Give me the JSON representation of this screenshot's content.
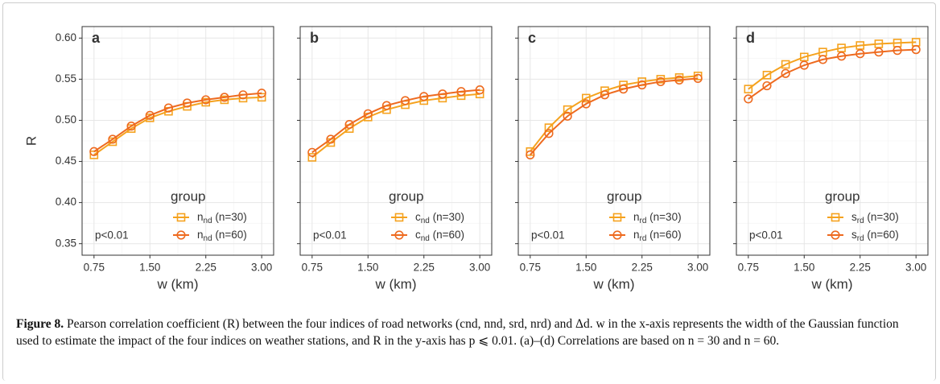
{
  "chart_data": [
    {
      "type": "line",
      "panel_label": "a",
      "ylabel": "R",
      "xlabel": "w (km)",
      "legend_title": "group",
      "annotation": "p<0.01",
      "show_ytick_labels": true,
      "x": [
        0.75,
        1.0,
        1.25,
        1.5,
        1.75,
        2.0,
        2.25,
        2.5,
        2.75,
        3.0
      ],
      "series": [
        {
          "name": "nnd (n=30)",
          "color": "#f5a21e",
          "marker": "square",
          "values": [
            0.458,
            0.474,
            0.49,
            0.503,
            0.511,
            0.517,
            0.522,
            0.525,
            0.527,
            0.528
          ]
        },
        {
          "name": "nnd (n=60)",
          "color": "#ee6a1f",
          "marker": "circle",
          "values": [
            0.462,
            0.477,
            0.493,
            0.506,
            0.515,
            0.521,
            0.525,
            0.528,
            0.531,
            0.533
          ]
        }
      ],
      "xlim": [
        0.59,
        3.16
      ],
      "xticks": [
        0.75,
        {
          "value": 1.5,
          "label": "1.50"
        },
        2.25,
        {
          "value": 3.0,
          "label": "3.00"
        }
      ],
      "ylim": [
        0.336,
        0.614
      ],
      "yticks": [
        0.35,
        {
          "value": 0.4,
          "label": "0.40"
        },
        0.45,
        {
          "value": 0.5,
          "label": "0.50"
        },
        0.55,
        {
          "value": 0.6,
          "label": "0.60"
        }
      ],
      "grid": true
    },
    {
      "type": "line",
      "panel_label": "b",
      "xlabel": "w (km)",
      "legend_title": "group",
      "annotation": "p<0.01",
      "show_ytick_labels": false,
      "x": [
        0.75,
        1.0,
        1.25,
        1.5,
        1.75,
        2.0,
        2.25,
        2.5,
        2.75,
        3.0
      ],
      "series": [
        {
          "name": "cnd (n=30)",
          "color": "#f5a21e",
          "marker": "square",
          "values": [
            0.455,
            0.473,
            0.49,
            0.504,
            0.513,
            0.519,
            0.524,
            0.527,
            0.53,
            0.532
          ]
        },
        {
          "name": "cnd (n=60)",
          "color": "#ee6a1f",
          "marker": "circle",
          "values": [
            0.461,
            0.477,
            0.495,
            0.508,
            0.518,
            0.524,
            0.529,
            0.532,
            0.535,
            0.537
          ]
        }
      ],
      "xlim": [
        0.59,
        3.16
      ],
      "xticks": [
        0.75,
        {
          "value": 1.5,
          "label": "1.50"
        },
        2.25,
        {
          "value": 3.0,
          "label": "3.00"
        }
      ],
      "ylim": [
        0.336,
        0.614
      ],
      "yticks": [
        0.35,
        0.4,
        0.45,
        0.5,
        0.55,
        0.6
      ],
      "grid": true
    },
    {
      "type": "line",
      "panel_label": "c",
      "xlabel": "w (km)",
      "legend_title": "group",
      "annotation": "p<0.01",
      "show_ytick_labels": false,
      "x": [
        0.75,
        1.0,
        1.25,
        1.5,
        1.75,
        2.0,
        2.25,
        2.5,
        2.75,
        3.0
      ],
      "series": [
        {
          "name": "nrd (n=30)",
          "color": "#f5a21e",
          "marker": "square",
          "values": [
            0.462,
            0.491,
            0.513,
            0.527,
            0.536,
            0.543,
            0.547,
            0.55,
            0.552,
            0.554
          ]
        },
        {
          "name": "nrd (n=60)",
          "color": "#ee6a1f",
          "marker": "circle",
          "values": [
            0.458,
            0.484,
            0.505,
            0.52,
            0.531,
            0.538,
            0.543,
            0.547,
            0.549,
            0.551
          ]
        }
      ],
      "xlim": [
        0.59,
        3.16
      ],
      "xticks": [
        0.75,
        {
          "value": 1.5,
          "label": "1.50"
        },
        2.25,
        {
          "value": 3.0,
          "label": "3.00"
        }
      ],
      "ylim": [
        0.336,
        0.614
      ],
      "yticks": [
        0.35,
        0.4,
        0.45,
        0.5,
        0.55,
        0.6
      ],
      "grid": true
    },
    {
      "type": "line",
      "panel_label": "d",
      "xlabel": "w (km)",
      "legend_title": "group",
      "annotation": "p<0.01",
      "show_ytick_labels": false,
      "x": [
        0.75,
        1.0,
        1.25,
        1.5,
        1.75,
        2.0,
        2.25,
        2.5,
        2.75,
        3.0
      ],
      "series": [
        {
          "name": "srd (n=30)",
          "color": "#f5a21e",
          "marker": "square",
          "values": [
            0.538,
            0.555,
            0.568,
            0.577,
            0.583,
            0.588,
            0.591,
            0.593,
            0.594,
            0.595
          ]
        },
        {
          "name": "srd (n=60)",
          "color": "#ee6a1f",
          "marker": "circle",
          "values": [
            0.526,
            0.542,
            0.557,
            0.567,
            0.574,
            0.578,
            0.581,
            0.583,
            0.585,
            0.586
          ]
        }
      ],
      "xlim": [
        0.59,
        3.16
      ],
      "xticks": [
        0.75,
        {
          "value": 1.5,
          "label": "1.50"
        },
        2.25,
        {
          "value": 3.0,
          "label": "3.00"
        }
      ],
      "ylim": [
        0.336,
        0.614
      ],
      "yticks": [
        0.35,
        0.4,
        0.45,
        0.5,
        0.55,
        0.6
      ],
      "grid": true
    }
  ],
  "caption": {
    "label": "Figure 8.",
    "text": "Pearson correlation coefficient (R) between the four indices of road networks (cnd, nnd, srd, nrd) and Δd. w in the x-axis represents the width of the Gaussian function used to estimate the impact of the four indices on weather stations, and R in the y-axis has p ⩽ 0.01. (a)–(d) Correlations are based on n = 30 and n = 60."
  }
}
